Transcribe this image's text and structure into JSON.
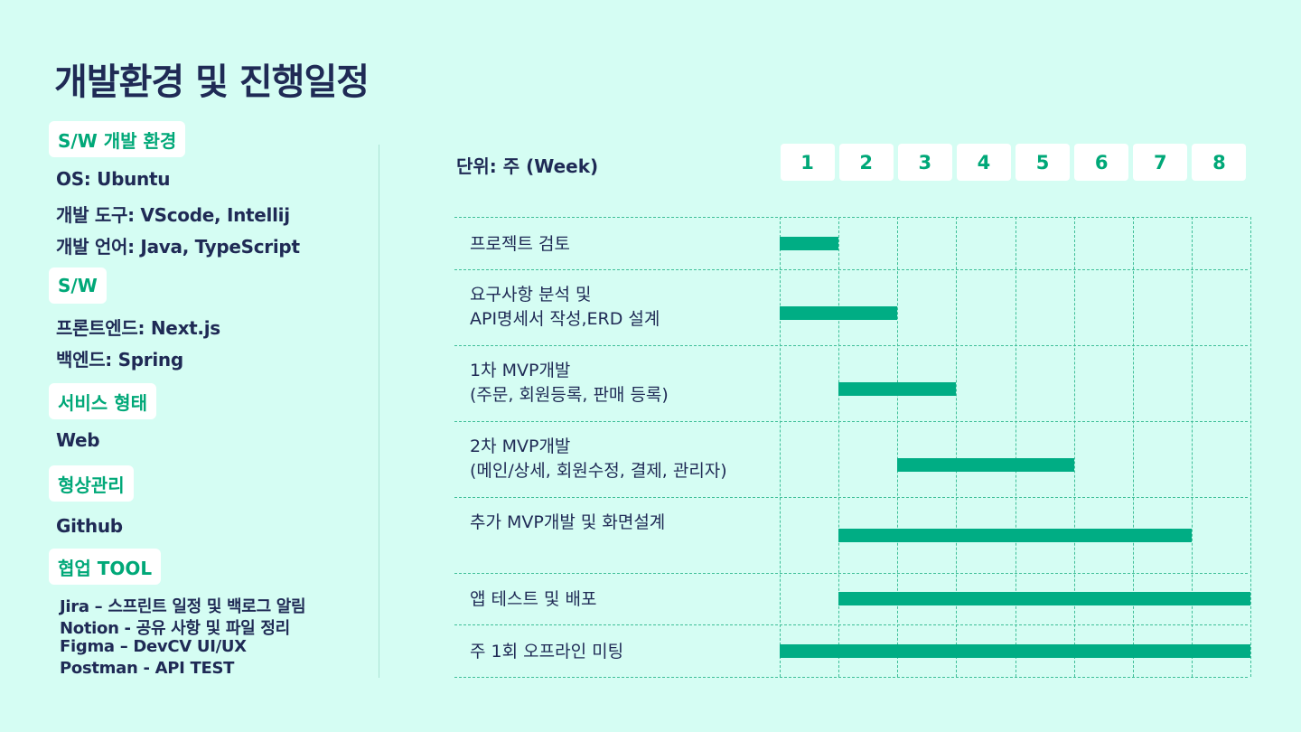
{
  "title": "개발환경 및 진행일정",
  "sections": {
    "sw_env": {
      "label": "S/W 개발 환경",
      "lines": [
        "OS: Ubuntu",
        "개발 도구: VScode, Intellij",
        "개발 언어: Java, TypeScript"
      ]
    },
    "sw": {
      "label": "S/W",
      "lines": [
        "프론트엔드: Next.js",
        "백엔드: Spring"
      ]
    },
    "service": {
      "label": "서비스 형태",
      "lines": [
        "Web"
      ]
    },
    "vcs": {
      "label": "형상관리",
      "lines": [
        "Github"
      ]
    },
    "collab": {
      "label": "협업 TOOL",
      "lines": [
        "Jira – 스프린트 일정 및 백로그 알림",
        "Notion - 공유 사항 및 파일 정리",
        "Figma – DevCV UI/UX",
        "Postman - API TEST"
      ]
    }
  },
  "schedule": {
    "unit_label": "단위: 주 (Week)",
    "weeks": [
      "1",
      "2",
      "3",
      "4",
      "5",
      "6",
      "7",
      "8"
    ],
    "tasks": [
      {
        "name": "프로젝트 검토",
        "start_week": 1,
        "end_week": 1
      },
      {
        "name": "요구사항 분석 및\nAPI명세서 작성,ERD 설계",
        "start_week": 1,
        "end_week": 2
      },
      {
        "name": "1차 MVP개발\n(주문, 회원등록, 판매 등록)",
        "start_week": 2,
        "end_week": 3
      },
      {
        "name": "2차 MVP개발\n(메인/상세, 회원수정, 결제, 관리자)",
        "start_week": 3,
        "end_week": 5
      },
      {
        "name": "추가 MVP개발 및 화면설계",
        "start_week": 2,
        "end_week": 7
      },
      {
        "name": "앱 테스트 및 배포",
        "start_week": 2,
        "end_week": 8
      },
      {
        "name": "주 1회 오프라인 미팅",
        "start_week": 1,
        "end_week": 8
      }
    ]
  },
  "colors": {
    "background": "#d5fdf3",
    "accent": "#00a878",
    "bar": "#00ad84",
    "text": "#1f2a55"
  }
}
